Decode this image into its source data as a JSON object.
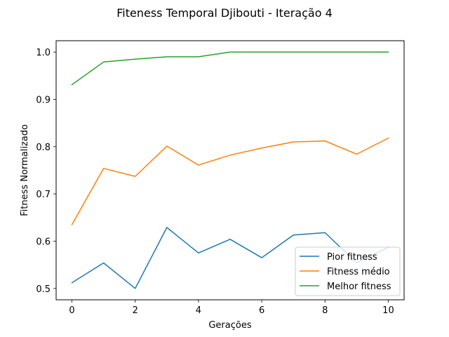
{
  "chart_data": {
    "type": "line",
    "title": "Fiteness Temporal Djibouti - Iteração 4",
    "xlabel": "Gerações",
    "ylabel": "Fitness Normalizado",
    "xlim": [
      -0.5,
      10.5
    ],
    "ylim": [
      0.476,
      1.024
    ],
    "xticks": [
      0,
      2,
      4,
      6,
      8,
      10
    ],
    "yticks": [
      0.5,
      0.6,
      0.7,
      0.8,
      0.9,
      1.0
    ],
    "ytick_labels": [
      "0.5",
      "0.6",
      "0.7",
      "0.8",
      "0.9",
      "1.0"
    ],
    "grid": false,
    "legend_position": "lower-right",
    "x": [
      0,
      1,
      2,
      3,
      4,
      5,
      6,
      7,
      8,
      9,
      10
    ],
    "series": [
      {
        "name": "Pior fitness",
        "color": "#1f77b4",
        "values": [
          0.512,
          0.554,
          0.5,
          0.629,
          0.575,
          0.604,
          0.565,
          0.613,
          0.618,
          0.554,
          0.587
        ]
      },
      {
        "name": "Fitness médio",
        "color": "#ff7f0e",
        "values": [
          0.635,
          0.754,
          0.737,
          0.801,
          0.761,
          0.782,
          0.797,
          0.81,
          0.812,
          0.784,
          0.818
        ]
      },
      {
        "name": "Melhor fitness",
        "color": "#2ca02c",
        "values": [
          0.931,
          0.979,
          0.985,
          0.99,
          0.99,
          1.0,
          1.0,
          1.0,
          1.0,
          1.0,
          1.0
        ]
      }
    ]
  }
}
